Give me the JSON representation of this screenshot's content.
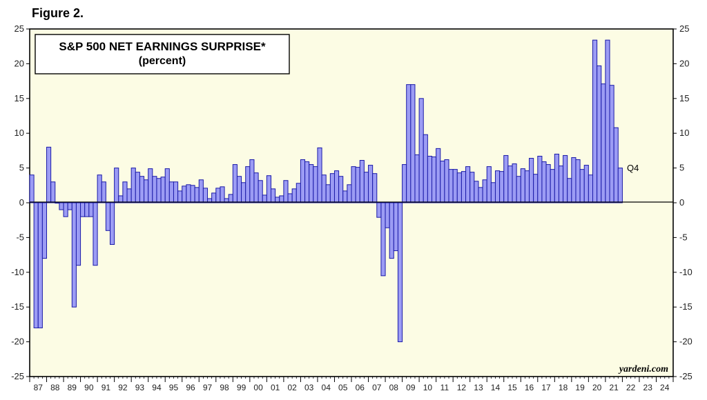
{
  "figure_label": "Figure 2.",
  "chart_data": {
    "type": "bar",
    "title": "S&P 500 NET EARNINGS SURPRISE*",
    "subtitle": "(percent)",
    "credit": "yardeni.com",
    "annotation": "Q4",
    "xlabel": "",
    "ylabel": "",
    "ylim": [
      -25,
      25
    ],
    "yticks": [
      -25,
      -20,
      -15,
      -10,
      -5,
      0,
      5,
      10,
      15,
      20,
      25
    ],
    "year_labels": [
      "87",
      "88",
      "89",
      "90",
      "91",
      "92",
      "93",
      "94",
      "95",
      "96",
      "97",
      "98",
      "99",
      "00",
      "01",
      "02",
      "03",
      "04",
      "05",
      "06",
      "07",
      "08",
      "09",
      "10",
      "11",
      "12",
      "13",
      "14",
      "15",
      "16",
      "17",
      "18",
      "19",
      "20",
      "21",
      "22",
      "23",
      "24"
    ],
    "first_quarter": "1987 Q1",
    "values": [
      4.0,
      -18.0,
      -18.0,
      -8.0,
      8.0,
      3.0,
      0.0,
      -1.0,
      -2.0,
      -1.0,
      -15.0,
      -9.0,
      -2.0,
      -2.0,
      -2.0,
      -9.0,
      4.0,
      3.0,
      -4.0,
      -6.0,
      5.0,
      1.0,
      3.0,
      2.0,
      5.0,
      4.4,
      3.8,
      3.3,
      4.9,
      3.8,
      3.5,
      3.7,
      4.9,
      3.0,
      3.0,
      1.7,
      2.4,
      2.6,
      2.5,
      2.2,
      3.3,
      2.1,
      0.6,
      1.4,
      2.1,
      2.3,
      0.6,
      1.2,
      5.5,
      3.8,
      2.9,
      5.2,
      6.2,
      4.3,
      3.2,
      1.1,
      3.9,
      2.0,
      0.8,
      1.0,
      3.2,
      1.3,
      2.0,
      2.8,
      6.2,
      5.9,
      5.5,
      5.2,
      7.9,
      4.0,
      2.6,
      4.2,
      4.6,
      3.8,
      1.7,
      2.6,
      5.2,
      5.1,
      6.1,
      4.4,
      5.4,
      4.2,
      -2.1,
      -10.5,
      -3.6,
      -8.0,
      -6.9,
      -20.0,
      5.5,
      17.0,
      17.0,
      6.9,
      15.0,
      9.8,
      6.7,
      6.6,
      7.8,
      6.0,
      6.2,
      4.8,
      4.8,
      4.3,
      4.5,
      5.2,
      4.4,
      3.1,
      2.2,
      3.3,
      5.2,
      2.9,
      4.6,
      4.5,
      6.8,
      5.3,
      5.6,
      3.8,
      4.9,
      4.6,
      6.4,
      4.1,
      6.7,
      5.9,
      5.5,
      4.8,
      7.0,
      5.3,
      6.8,
      3.5,
      6.5,
      6.2,
      4.8,
      5.4,
      4.0,
      23.4,
      19.7,
      17.1,
      23.4,
      16.9,
      10.8,
      5.0
    ]
  }
}
